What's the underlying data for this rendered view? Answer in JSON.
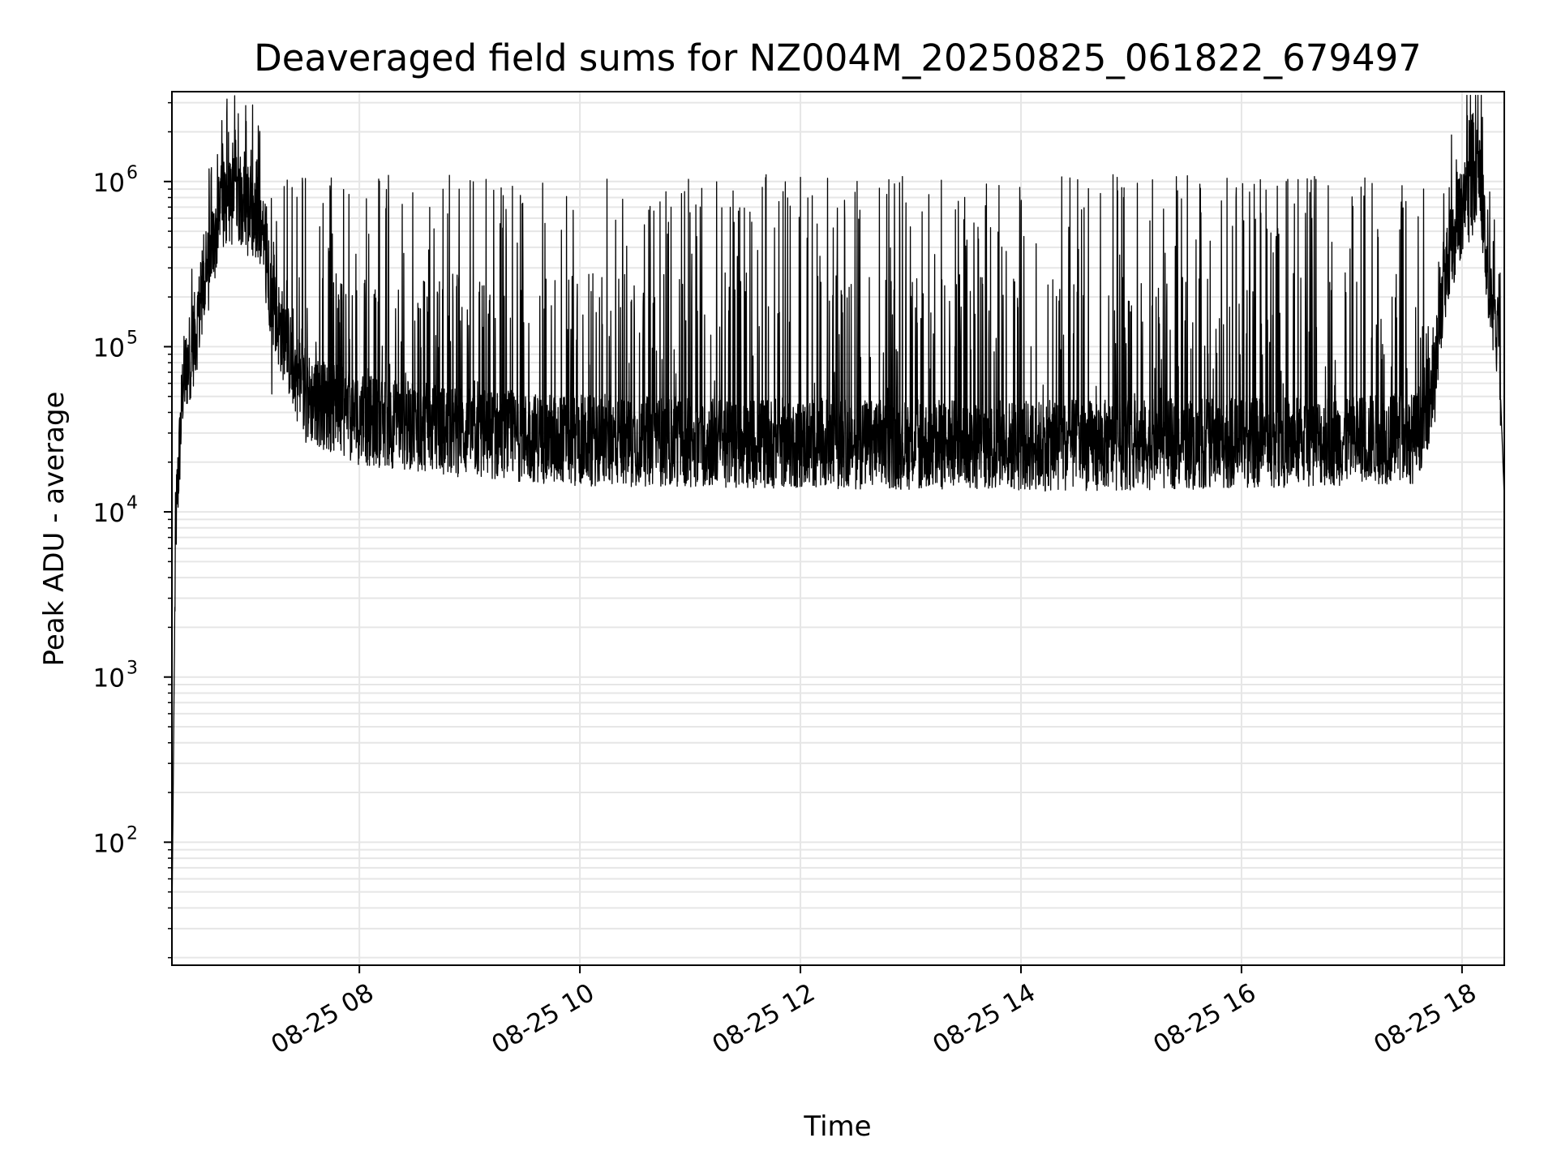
{
  "chart_data": {
    "type": "line",
    "title": "Deaveraged field sums for NZ004M_20250825_061822_679497",
    "xlabel": "Time",
    "ylabel": "Peak ADU - average",
    "x_axis": {
      "kind": "datetime",
      "range": [
        "2025-08-25T06:18",
        "2025-08-25T18:23"
      ],
      "ticks": [
        {
          "time": "2025-08-25T08:00",
          "label": "08-25 08"
        },
        {
          "time": "2025-08-25T10:00",
          "label": "08-25 10"
        },
        {
          "time": "2025-08-25T12:00",
          "label": "08-25 12"
        },
        {
          "time": "2025-08-25T14:00",
          "label": "08-25 14"
        },
        {
          "time": "2025-08-25T16:00",
          "label": "08-25 16"
        },
        {
          "time": "2025-08-25T18:00",
          "label": "08-25 18"
        }
      ]
    },
    "y_axis": {
      "scale": "log",
      "range": [
        18,
        3500000
      ],
      "ticks": [
        {
          "value": 100,
          "base": "10",
          "exp": "2"
        },
        {
          "value": 1000,
          "base": "10",
          "exp": "3"
        },
        {
          "value": 10000,
          "base": "10",
          "exp": "4"
        },
        {
          "value": 100000,
          "base": "10",
          "exp": "5"
        },
        {
          "value": 1000000,
          "base": "10",
          "exp": "6"
        }
      ]
    },
    "grid": true,
    "legend": "none",
    "line_color": "#000000",
    "grid_color": "#e6e6e6",
    "series_profile": {
      "baseline_points": [
        [
          "2025-08-25T06:18",
          30
        ],
        [
          "2025-08-25T06:20",
          8000
        ],
        [
          "2025-08-25T06:24",
          60000
        ],
        [
          "2025-08-25T06:30",
          110000
        ],
        [
          "2025-08-25T06:38",
          300000
        ],
        [
          "2025-08-25T06:45",
          700000
        ],
        [
          "2025-08-25T06:55",
          800000
        ],
        [
          "2025-08-25T07:05",
          500000
        ],
        [
          "2025-08-25T07:15",
          150000
        ],
        [
          "2025-08-25T07:30",
          50000
        ],
        [
          "2025-08-25T08:00",
          36000
        ],
        [
          "2025-08-25T09:00",
          30000
        ],
        [
          "2025-08-25T10:00",
          27000
        ],
        [
          "2025-08-25T12:00",
          26000
        ],
        [
          "2025-08-25T14:00",
          25000
        ],
        [
          "2025-08-25T16:00",
          26000
        ],
        [
          "2025-08-25T17:35",
          28000
        ],
        [
          "2025-08-25T17:45",
          60000
        ],
        [
          "2025-08-25T17:50",
          250000
        ],
        [
          "2025-08-25T18:00",
          700000
        ],
        [
          "2025-08-25T18:10",
          1000000
        ],
        [
          "2025-08-25T18:15",
          200000
        ],
        [
          "2025-08-25T18:20",
          100000
        ],
        [
          "2025-08-25T18:23",
          12000
        ]
      ],
      "spike_peak": 1000000,
      "spike_window": [
        "2025-08-25T07:10",
        "2025-08-25T17:40"
      ]
    }
  }
}
